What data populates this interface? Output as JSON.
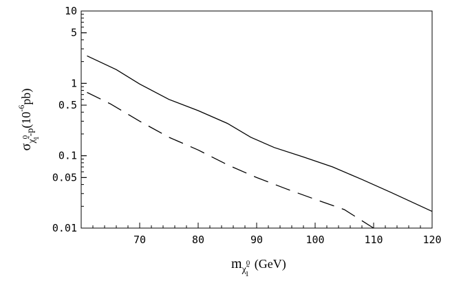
{
  "chart_data": {
    "type": "line",
    "xlim": [
      60,
      120
    ],
    "ylim": [
      0.01,
      10
    ],
    "yscale": "log",
    "grid": false,
    "legend": "none",
    "x_ticks": [
      70,
      80,
      90,
      100,
      110,
      120
    ],
    "x_tick_labels": [
      "70",
      "80",
      "90",
      "100",
      "110",
      "120"
    ],
    "y_ticks": [
      0.01,
      0.05,
      0.1,
      0.5,
      1,
      5,
      10
    ],
    "y_tick_labels": [
      "0.01",
      "0.05",
      "0.1",
      "0.5",
      "1",
      "5",
      "10"
    ],
    "xlabel": {
      "symbol": "m",
      "sub": "χ̃",
      "sub_sup": "0",
      "sub_sub": "1",
      "tail": "(GeV)"
    },
    "ylabel": {
      "symbol": "σ",
      "sub": "χ̃",
      "sub_sup": "0",
      "sub_sub": "1",
      "sub_tail": "-p",
      "tail_open": "(10",
      "exp": "-6",
      "tail_close": "pb)"
    },
    "series": [
      {
        "style": "solid",
        "x": [
          61,
          66,
          70,
          75,
          80,
          85,
          89,
          93,
          98,
          103,
          108,
          113,
          120
        ],
        "y": [
          2.4,
          1.55,
          0.98,
          0.6,
          0.42,
          0.28,
          0.18,
          0.13,
          0.096,
          0.07,
          0.047,
          0.031,
          0.017
        ]
      },
      {
        "style": "dashed",
        "x": [
          61,
          65,
          70,
          75,
          80,
          85,
          90,
          95,
          100,
          105,
          110
        ],
        "y": [
          0.75,
          0.52,
          0.3,
          0.18,
          0.12,
          0.075,
          0.05,
          0.035,
          0.025,
          0.018,
          0.01
        ]
      }
    ]
  }
}
